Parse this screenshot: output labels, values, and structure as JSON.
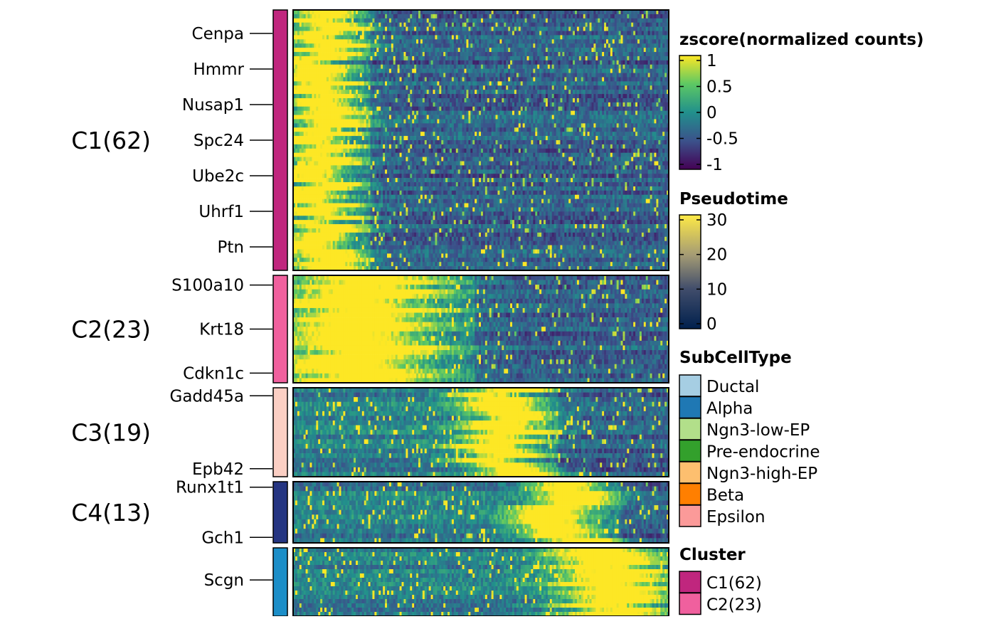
{
  "chart_data": {
    "type": "heatmap",
    "description_tag": "",
    "n_cells": 180,
    "clusters": [
      {
        "label": "C1(62)",
        "n_rows": 62,
        "color": "#C0267E",
        "peak_center": 0.07,
        "peak_width": 0.09,
        "genes": [
          "Cenpa",
          "Hmmr",
          "Nusap1",
          "Spc24",
          "Ube2c",
          "Uhrf1",
          "Ptn"
        ]
      },
      {
        "label": "C2(23)",
        "n_rows": 23,
        "color": "#F0609E",
        "peak_center": 0.18,
        "peak_width": 0.2,
        "genes": [
          "S100a10",
          "Krt18",
          "Cdkn1c"
        ]
      },
      {
        "label": "C3(19)",
        "n_rows": 19,
        "color": "#FBCFC4",
        "peak_center": 0.55,
        "peak_width": 0.1,
        "genes": [
          "Gadd45a",
          "Epb42"
        ]
      },
      {
        "label": "C4(13)",
        "n_rows": 13,
        "color": "#253582",
        "peak_center": 0.72,
        "peak_width": 0.1,
        "genes": [
          "Runx1t1",
          "Gch1"
        ]
      },
      {
        "label": "",
        "n_rows": 16,
        "color": "#1C8EC8",
        "peak_center": 0.85,
        "peak_width": 0.14,
        "genes": [
          "Scgn"
        ]
      }
    ],
    "zscore_range": [
      -1,
      1
    ]
  },
  "legends": {
    "zscore": {
      "title": "zscore(normalized counts)",
      "ticks": [
        "1",
        "0.5",
        "0",
        "-0.5",
        "-1"
      ]
    },
    "pseudotime": {
      "title": "Pseudotime",
      "ticks": [
        "30",
        "20",
        "10",
        "0"
      ]
    },
    "subcelltype": {
      "title": "SubCellType",
      "items": [
        {
          "label": "Ductal",
          "color": "#A6CEE3"
        },
        {
          "label": "Alpha",
          "color": "#1F78B4"
        },
        {
          "label": "Ngn3-low-EP",
          "color": "#B2DF8A"
        },
        {
          "label": "Pre-endocrine",
          "color": "#33A02C"
        },
        {
          "label": "Ngn3-high-EP",
          "color": "#FDBF6F"
        },
        {
          "label": "Beta",
          "color": "#FF7F00"
        },
        {
          "label": "Epsilon",
          "color": "#FB9A99"
        }
      ]
    },
    "cluster": {
      "title": "Cluster",
      "items": [
        {
          "label": "C1(62)",
          "color": "#C0267E"
        },
        {
          "label": "C2(23)",
          "color": "#F0609E"
        }
      ]
    }
  }
}
